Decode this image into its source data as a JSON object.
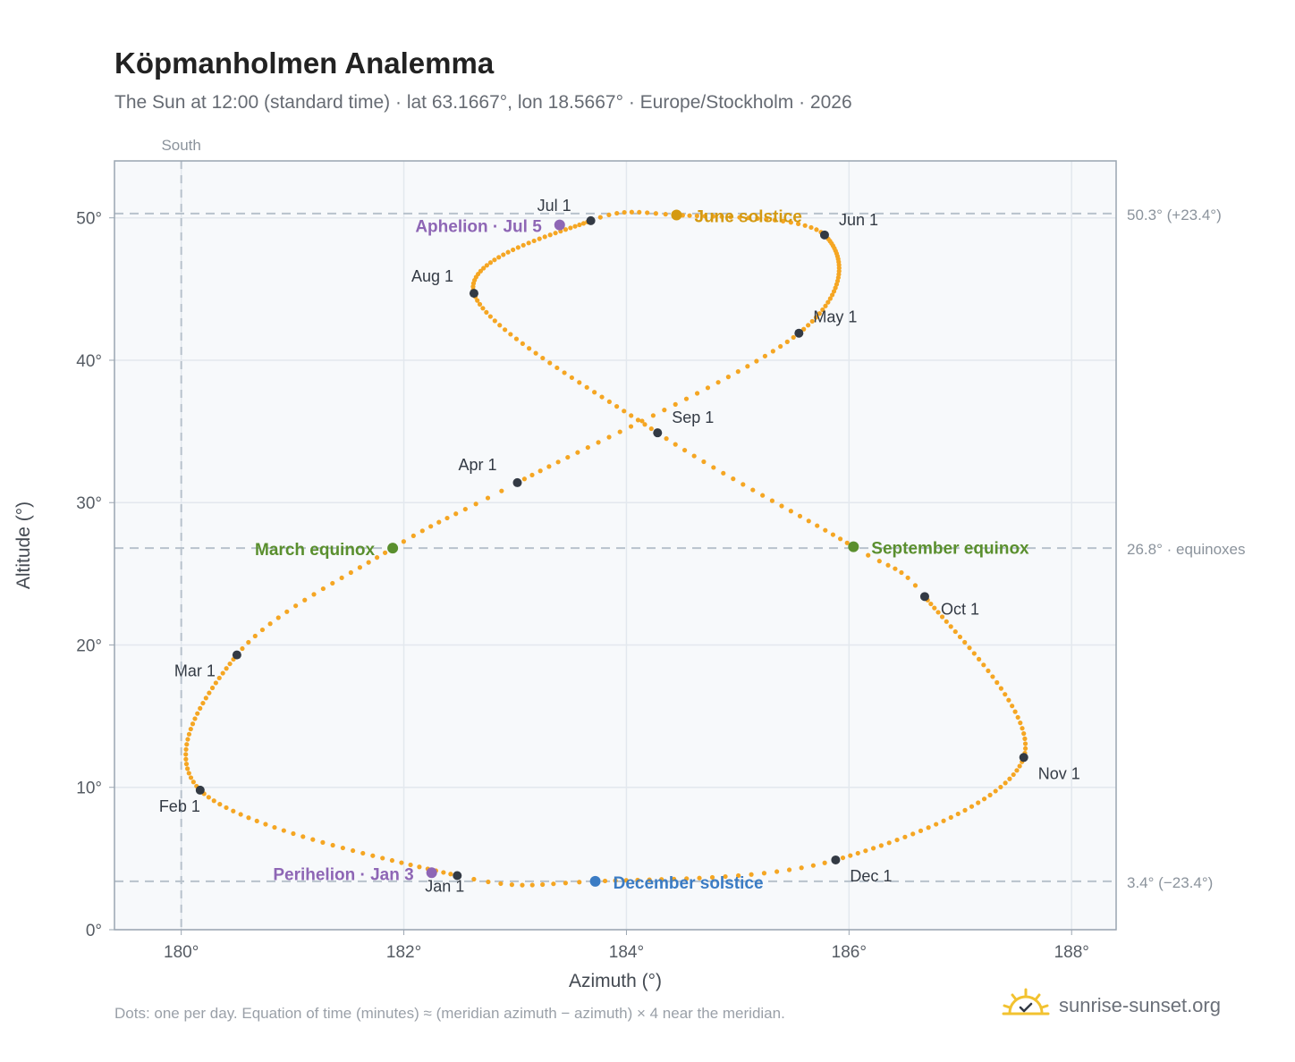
{
  "title": "Köpmanholmen Analemma",
  "subtitle": "The Sun at 12:00 (standard time) · lat 63.1667°, lon 18.5667° · Europe/Stockholm · 2026",
  "footnote": "Dots: one per day. Equation of time (minutes) ≈ (meridian azimuth − azimuth) × 4 near the meridian.",
  "brand": {
    "name": "sunrise-sunset.org",
    "icon": "sun-logo-icon"
  },
  "colors": {
    "track": "#f5a623",
    "month_marker": "#333a44",
    "equinox": "#5a8f2e",
    "june_solstice": "#d49a12",
    "december_solstice": "#3b7cc4",
    "apsis": "#8e66b5",
    "reference_line": "#b8c2cc",
    "plot_background": "#f7f9fb"
  },
  "chart_data": {
    "type": "scatter",
    "xlabel": "Azimuth (°)",
    "ylabel": "Altitude (°)",
    "xlim": [
      179.4,
      188.4
    ],
    "ylim": [
      0,
      54
    ],
    "xticks": [
      180,
      182,
      184,
      186,
      188
    ],
    "yticks": [
      0,
      10,
      20,
      30,
      40,
      50
    ],
    "xtick_labels": [
      "180°",
      "182°",
      "184°",
      "186°",
      "188°"
    ],
    "ytick_labels": [
      "0°",
      "10°",
      "20°",
      "30°",
      "40°",
      "50°"
    ],
    "grid": true,
    "south_line": {
      "azimuth": 180,
      "label": "South"
    },
    "reference_lines": [
      {
        "altitude": 50.3,
        "label": "50.3° (+23.4°)"
      },
      {
        "altitude": 26.8,
        "label": "26.8° · equinoxes"
      },
      {
        "altitude": 3.4,
        "label": "3.4° (−23.4°)"
      }
    ],
    "daily_path_note": "one dot per day",
    "month_markers": [
      {
        "label": "Jan 1",
        "azimuth": 182.48,
        "altitude": 3.8
      },
      {
        "label": "Feb 1",
        "azimuth": 180.17,
        "altitude": 9.8
      },
      {
        "label": "Mar 1",
        "azimuth": 180.5,
        "altitude": 19.3
      },
      {
        "label": "Apr 1",
        "azimuth": 183.02,
        "altitude": 31.4
      },
      {
        "label": "May 1",
        "azimuth": 185.55,
        "altitude": 41.9
      },
      {
        "label": "Jun 1",
        "azimuth": 185.78,
        "altitude": 48.8
      },
      {
        "label": "Jul 1",
        "azimuth": 183.68,
        "altitude": 49.8
      },
      {
        "label": "Aug 1",
        "azimuth": 182.63,
        "altitude": 44.7
      },
      {
        "label": "Sep 1",
        "azimuth": 184.28,
        "altitude": 34.9
      },
      {
        "label": "Oct 1",
        "azimuth": 186.68,
        "altitude": 23.4
      },
      {
        "label": "Nov 1",
        "azimuth": 187.57,
        "altitude": 12.1
      },
      {
        "label": "Dec 1",
        "azimuth": 185.88,
        "altitude": 4.9
      }
    ],
    "events": [
      {
        "label": "March equinox",
        "azimuth": 181.9,
        "altitude": 26.8,
        "kind": "equinox"
      },
      {
        "label": "September equinox",
        "azimuth": 186.04,
        "altitude": 26.9,
        "kind": "equinox"
      },
      {
        "label": "June solstice",
        "azimuth": 184.45,
        "altitude": 50.2,
        "kind": "june_solstice"
      },
      {
        "label": "December solstice",
        "azimuth": 183.72,
        "altitude": 3.4,
        "kind": "december_solstice"
      },
      {
        "label": "Aphelion · Jul 5",
        "azimuth": 183.4,
        "altitude": 49.5,
        "kind": "apsis"
      },
      {
        "label": "Perihelion · Jan 3",
        "azimuth": 182.25,
        "altitude": 4.0,
        "kind": "apsis"
      }
    ]
  }
}
